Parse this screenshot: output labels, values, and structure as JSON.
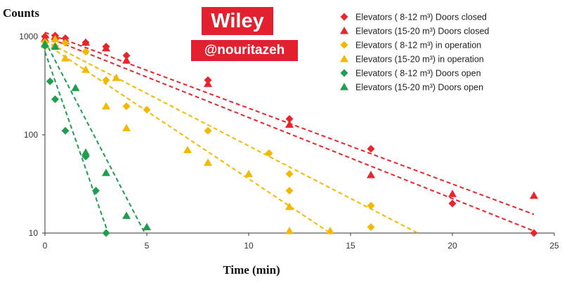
{
  "watermark": {
    "brand": "Wiley",
    "handle": "@nouritazeh"
  },
  "chart_data": {
    "type": "scatter",
    "title": "",
    "ylabel": "Counts",
    "xlabel": "Time (min)",
    "xlim": [
      0,
      25
    ],
    "ylim": [
      10,
      1000
    ],
    "yscale": "log",
    "x_ticks": [
      0,
      5,
      10,
      15,
      20,
      25
    ],
    "y_ticks": [
      10,
      100,
      1000
    ],
    "grid": false,
    "legend_position": "top-right",
    "trendlines": "dashed exponential fit per series",
    "series": [
      {
        "name": "Elevators ( 8-12 m³) Doors closed",
        "color": "#e8252b",
        "marker": "diamond",
        "x": [
          0,
          0.5,
          1,
          2,
          3,
          4,
          8,
          12,
          16,
          20,
          24
        ],
        "y": [
          1000,
          1020,
          960,
          870,
          790,
          640,
          360,
          145,
          72,
          20,
          10
        ],
        "fit": {
          "x": [
            0,
            24
          ],
          "y": [
            1000,
            10.5
          ]
        }
      },
      {
        "name": "Elevators (15-20 m³) Doors closed",
        "color": "#e8252b",
        "marker": "triangle",
        "x": [
          0,
          0.5,
          1,
          2,
          3,
          4,
          8,
          12,
          16,
          20,
          24
        ],
        "y": [
          950,
          1000,
          900,
          870,
          760,
          570,
          330,
          127,
          39,
          25,
          24
        ],
        "fit": {
          "x": [
            0,
            24
          ],
          "y": [
            1100,
            15.5
          ]
        }
      },
      {
        "name": "Elevators ( 8-12 m³) in operation",
        "color": "#f5b800",
        "marker": "diamond",
        "x": [
          0,
          0.5,
          1,
          2,
          3,
          4,
          5,
          8,
          11,
          12,
          12,
          16,
          16
        ],
        "y": [
          880,
          800,
          860,
          700,
          360,
          195,
          180,
          110,
          65,
          40,
          27,
          19,
          11.5
        ],
        "fit": {
          "x": [
            0,
            18.3
          ],
          "y": [
            900,
            10
          ]
        }
      },
      {
        "name": "Elevators (15-20 m³) in operation",
        "color": "#f5b800",
        "marker": "triangle",
        "x": [
          0,
          0.5,
          1,
          2,
          3,
          3.5,
          4,
          7,
          8,
          10,
          12,
          12,
          14
        ],
        "y": [
          820,
          940,
          600,
          460,
          195,
          380,
          117,
          70,
          52,
          40,
          18.5,
          10.5,
          10.5
        ],
        "fit": {
          "x": [
            0,
            14
          ],
          "y": [
            850,
            10
          ]
        }
      },
      {
        "name": "Elevators ( 8-12 m³) Doors open",
        "color": "#1e9e4f",
        "marker": "diamond",
        "x": [
          0,
          0.25,
          0.5,
          1,
          2,
          2.5,
          3
        ],
        "y": [
          800,
          350,
          230,
          110,
          60,
          27,
          10
        ],
        "fit": {
          "x": [
            0,
            3.1
          ],
          "y": [
            700,
            10
          ]
        }
      },
      {
        "name": "Elevators (15-20 m³) Doors open",
        "color": "#1e9e4f",
        "marker": "triangle",
        "x": [
          0,
          0.5,
          1.5,
          2,
          3,
          4,
          5
        ],
        "y": [
          840,
          790,
          300,
          66,
          41,
          15,
          11.5
        ],
        "fit": {
          "x": [
            0,
            4.9
          ],
          "y": [
            900,
            10
          ]
        }
      }
    ]
  }
}
